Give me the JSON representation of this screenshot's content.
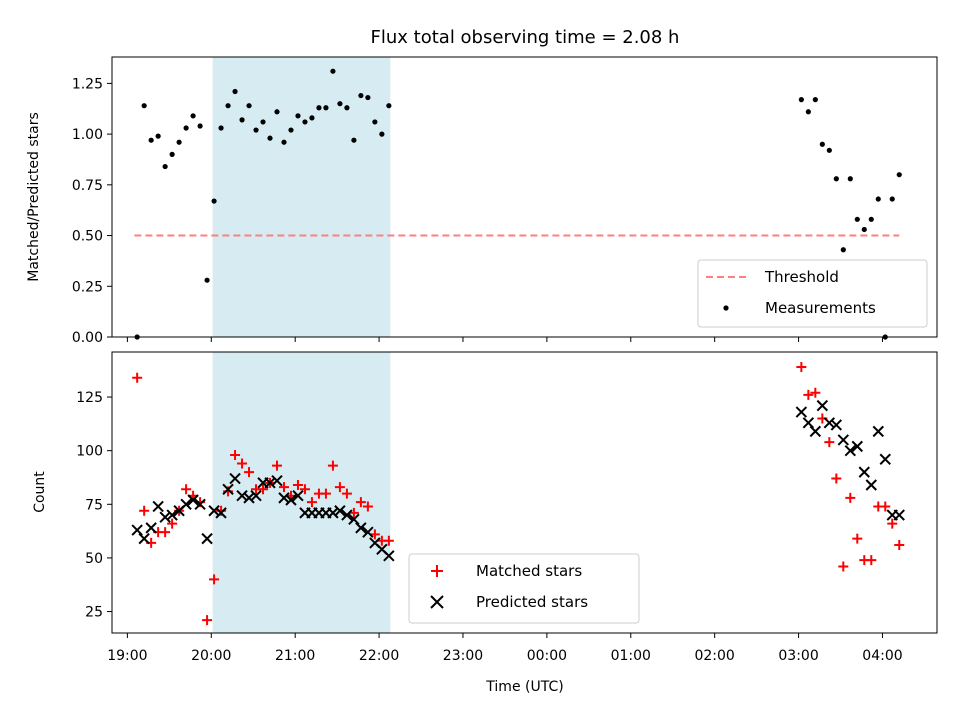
{
  "chart_data": [
    {
      "type": "scatter",
      "title": "Flux total observing time = 2.08 h",
      "xlabel": "",
      "ylabel": "Matched/Predicted stars",
      "ylim": [
        0,
        1.38
      ],
      "yticks": [
        "0.00",
        "0.25",
        "0.50",
        "0.75",
        "1.00",
        "1.25"
      ],
      "grid": false,
      "legend_position": "lower-right",
      "shaded_interval": {
        "start": "20:01",
        "end": "22:08",
        "color": "#add8e6"
      },
      "series": [
        {
          "name": "Threshold",
          "style": "dashed-line",
          "color": "#ff7f7f",
          "x": [
            "19:05",
            "04:12"
          ],
          "y": [
            0.5,
            0.5
          ]
        },
        {
          "name": "Measurements",
          "style": "dot",
          "color": "#000000",
          "x": [
            "19:07",
            "19:12",
            "19:17",
            "19:22",
            "19:27",
            "19:32",
            "19:37",
            "19:42",
            "19:47",
            "19:52",
            "19:57",
            "20:02",
            "20:07",
            "20:12",
            "20:17",
            "20:22",
            "20:27",
            "20:32",
            "20:37",
            "20:42",
            "20:47",
            "20:52",
            "20:57",
            "21:02",
            "21:07",
            "21:12",
            "21:17",
            "21:22",
            "21:27",
            "21:32",
            "21:37",
            "21:42",
            "21:47",
            "21:52",
            "21:57",
            "22:02",
            "22:07",
            "03:02",
            "03:07",
            "03:12",
            "03:17",
            "03:22",
            "03:27",
            "03:32",
            "03:37",
            "03:42",
            "03:47",
            "03:52",
            "03:57",
            "04:02",
            "04:07",
            "04:12"
          ],
          "y": [
            0.0,
            1.14,
            0.97,
            0.99,
            0.84,
            0.9,
            0.96,
            1.03,
            1.09,
            1.04,
            0.28,
            0.67,
            1.03,
            1.14,
            1.21,
            1.07,
            1.14,
            1.02,
            1.06,
            0.98,
            1.11,
            0.96,
            1.02,
            1.09,
            1.06,
            1.08,
            1.13,
            1.13,
            1.31,
            1.15,
            1.13,
            0.97,
            1.19,
            1.18,
            1.06,
            1.0,
            1.14,
            1.17,
            1.11,
            1.17,
            0.95,
            0.92,
            0.78,
            0.43,
            0.78,
            0.58,
            0.53,
            0.58,
            0.68,
            0.0,
            0.68,
            0.8
          ]
        }
      ]
    },
    {
      "type": "scatter",
      "title": "",
      "xlabel": "Time (UTC)",
      "ylabel": "Count",
      "ylim": [
        15,
        146
      ],
      "yticks": [
        "25",
        "50",
        "75",
        "100",
        "125"
      ],
      "xticks": [
        "19:00",
        "20:00",
        "21:00",
        "22:00",
        "23:00",
        "00:00",
        "01:00",
        "02:00",
        "03:00",
        "04:00"
      ],
      "grid": false,
      "legend_position": "lower-center",
      "shaded_interval": {
        "start": "20:01",
        "end": "22:08",
        "color": "#add8e6"
      },
      "series": [
        {
          "name": "Matched stars",
          "marker": "+",
          "color": "#ff0000",
          "x": [
            "19:07",
            "19:12",
            "19:17",
            "19:22",
            "19:27",
            "19:32",
            "19:37",
            "19:42",
            "19:47",
            "19:52",
            "19:57",
            "20:02",
            "20:07",
            "20:12",
            "20:17",
            "20:22",
            "20:27",
            "20:32",
            "20:37",
            "20:42",
            "20:47",
            "20:52",
            "20:57",
            "21:02",
            "21:07",
            "21:12",
            "21:17",
            "21:22",
            "21:27",
            "21:32",
            "21:37",
            "21:42",
            "21:47",
            "21:52",
            "21:57",
            "22:02",
            "22:07",
            "03:02",
            "03:07",
            "03:12",
            "03:17",
            "03:22",
            "03:27",
            "03:32",
            "03:37",
            "03:42",
            "03:47",
            "03:52",
            "03:57",
            "04:02",
            "04:07",
            "04:12"
          ],
          "y": [
            134,
            72,
            57,
            62,
            62,
            66,
            72,
            82,
            79,
            76,
            21,
            40,
            72,
            81,
            98,
            94,
            90,
            82,
            82,
            85,
            93,
            83,
            79,
            84,
            82,
            76,
            80,
            80,
            93,
            83,
            80,
            71,
            76,
            74,
            61,
            58,
            58,
            139,
            126,
            127,
            115,
            104,
            87,
            46,
            78,
            59,
            49,
            49,
            74,
            74,
            66,
            56
          ]
        },
        {
          "name": "Predicted stars",
          "marker": "x",
          "color": "#000000",
          "x": [
            "19:07",
            "19:12",
            "19:17",
            "19:22",
            "19:27",
            "19:32",
            "19:37",
            "19:42",
            "19:47",
            "19:52",
            "19:57",
            "20:02",
            "20:07",
            "20:12",
            "20:17",
            "20:22",
            "20:27",
            "20:32",
            "20:37",
            "20:42",
            "20:47",
            "20:52",
            "20:57",
            "21:02",
            "21:07",
            "21:12",
            "21:17",
            "21:22",
            "21:27",
            "21:32",
            "21:37",
            "21:42",
            "21:47",
            "21:52",
            "21:57",
            "22:02",
            "22:07",
            "03:02",
            "03:07",
            "03:12",
            "03:17",
            "03:22",
            "03:27",
            "03:32",
            "03:37",
            "03:42",
            "03:47",
            "03:52",
            "03:57",
            "04:02",
            "04:07",
            "04:12"
          ],
          "y": [
            63,
            59,
            64,
            74,
            69,
            70,
            72,
            75,
            77,
            75,
            59,
            72,
            71,
            82,
            87,
            79,
            78,
            79,
            85,
            85,
            86,
            78,
            77,
            79,
            71,
            71,
            71,
            71,
            71,
            72,
            70,
            68,
            64,
            62,
            57,
            54,
            51,
            118,
            113,
            109,
            121,
            113,
            112,
            105,
            100,
            102,
            90,
            84,
            109,
            96,
            70,
            70
          ]
        }
      ]
    }
  ]
}
